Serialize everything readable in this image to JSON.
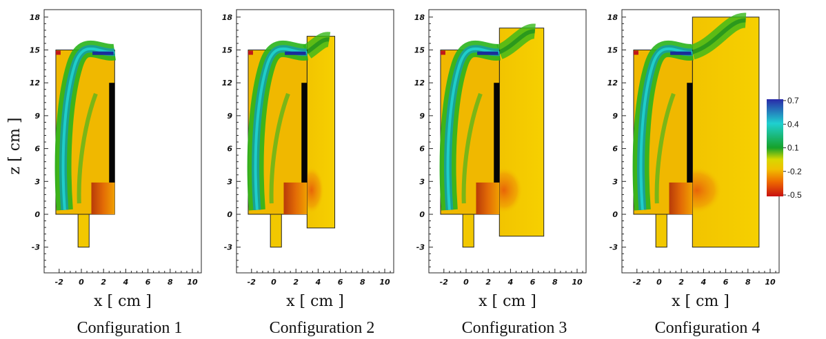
{
  "chart_data": {
    "type": "heatmap",
    "shared_y_label": "z [ cm ]",
    "x_label": "x [ cm ]",
    "x_ticks": [
      -2,
      0,
      2,
      4,
      6,
      8,
      10
    ],
    "y_ticks": [
      -3,
      0,
      3,
      6,
      9,
      12,
      15,
      18
    ],
    "xlim": [
      -3.5,
      10.5
    ],
    "ylim": [
      -5.5,
      18.5
    ],
    "colorbar": {
      "ticks": [
        "0.7",
        "0.4",
        "0.1",
        "-0.2",
        "-0.5"
      ],
      "range": [
        -0.5,
        0.7
      ],
      "colors": [
        "#2a2aa8",
        "#1fd0d0",
        "#16a22a",
        "#f0d000",
        "#ee6a00",
        "#c81010"
      ]
    },
    "panels": [
      {
        "caption": "Configuration 1",
        "extension": null
      },
      {
        "caption": "Configuration 2",
        "extension": {
          "x0": 3,
          "x1": 5.5,
          "z0": -1.25,
          "z1": 16.25
        }
      },
      {
        "caption": "Configuration 3",
        "extension": {
          "x0": 3,
          "x1": 7,
          "z0": -2,
          "z1": 17
        }
      },
      {
        "caption": "Configuration 4",
        "extension": {
          "x0": 3,
          "x1": 9,
          "z0": -3,
          "z1": 18
        }
      }
    ]
  }
}
